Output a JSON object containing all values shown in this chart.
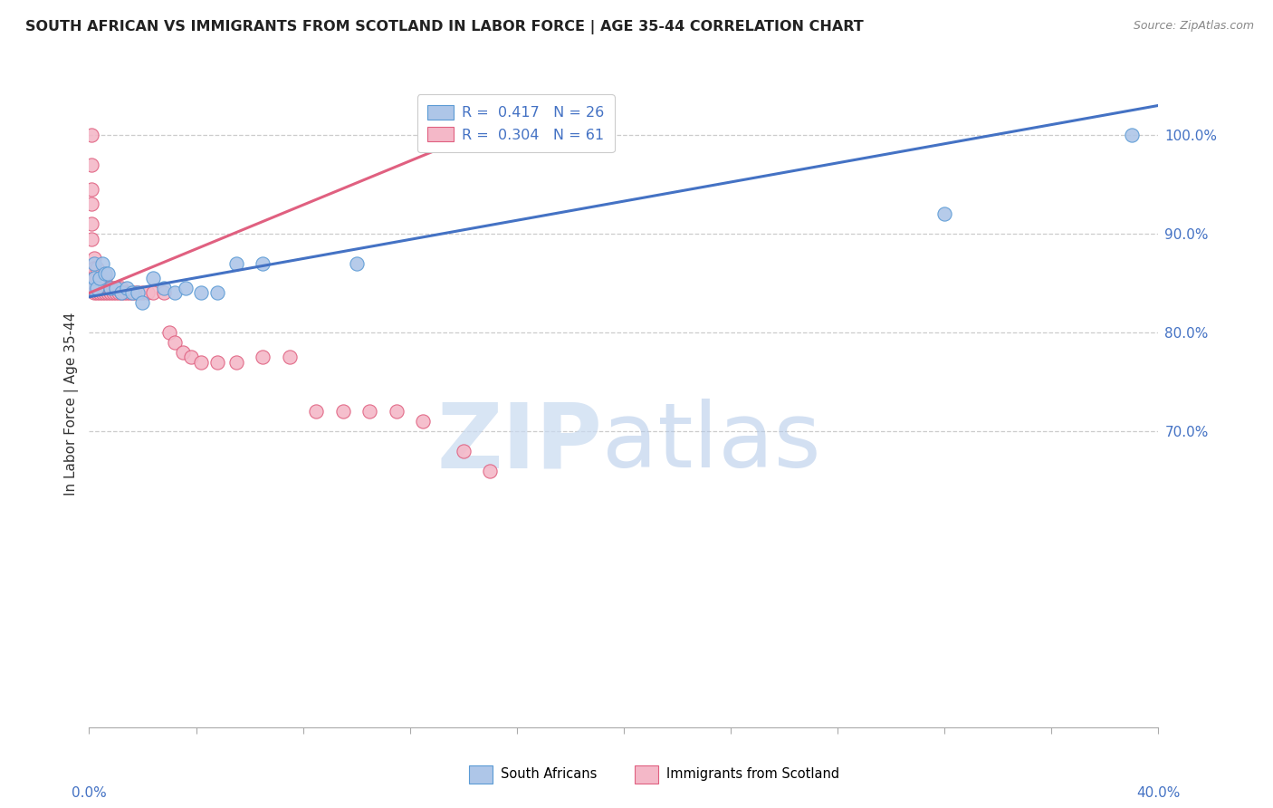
{
  "title": "SOUTH AFRICAN VS IMMIGRANTS FROM SCOTLAND IN LABOR FORCE | AGE 35-44 CORRELATION CHART",
  "source": "Source: ZipAtlas.com",
  "ylabel": "In Labor Force | Age 35-44",
  "watermark_zip": "ZIP",
  "watermark_atlas": "atlas",
  "legend_blue_text": "R =  0.417   N = 26",
  "legend_pink_text": "R =  0.304   N = 61",
  "blue_fill": "#aec6e8",
  "blue_edge": "#5b9bd5",
  "pink_fill": "#f4b8c8",
  "pink_edge": "#e06080",
  "blue_line": "#4472c4",
  "pink_line": "#e06080",
  "blue_scatter_x": [
    0.001,
    0.002,
    0.002,
    0.003,
    0.004,
    0.005,
    0.006,
    0.007,
    0.008,
    0.01,
    0.012,
    0.014,
    0.016,
    0.018,
    0.02,
    0.024,
    0.028,
    0.032,
    0.036,
    0.042,
    0.048,
    0.055,
    0.065,
    0.1,
    0.32,
    0.39
  ],
  "blue_scatter_y": [
    0.845,
    0.855,
    0.87,
    0.845,
    0.855,
    0.87,
    0.86,
    0.86,
    0.845,
    0.845,
    0.84,
    0.845,
    0.84,
    0.84,
    0.83,
    0.855,
    0.845,
    0.84,
    0.845,
    0.84,
    0.84,
    0.87,
    0.87,
    0.87,
    0.92,
    1.0
  ],
  "pink_scatter_x": [
    0.001,
    0.001,
    0.001,
    0.001,
    0.001,
    0.001,
    0.002,
    0.002,
    0.002,
    0.002,
    0.002,
    0.003,
    0.003,
    0.003,
    0.003,
    0.004,
    0.004,
    0.004,
    0.005,
    0.005,
    0.005,
    0.006,
    0.006,
    0.006,
    0.007,
    0.007,
    0.008,
    0.008,
    0.009,
    0.009,
    0.01,
    0.01,
    0.011,
    0.012,
    0.012,
    0.013,
    0.014,
    0.015,
    0.016,
    0.017,
    0.018,
    0.02,
    0.022,
    0.024,
    0.028,
    0.03,
    0.032,
    0.035,
    0.038,
    0.042,
    0.048,
    0.055,
    0.065,
    0.075,
    0.085,
    0.095,
    0.105,
    0.115,
    0.125,
    0.14,
    0.15
  ],
  "pink_scatter_y": [
    1.0,
    0.97,
    0.945,
    0.93,
    0.91,
    0.895,
    0.875,
    0.865,
    0.855,
    0.845,
    0.84,
    0.84,
    0.845,
    0.855,
    0.865,
    0.84,
    0.845,
    0.855,
    0.84,
    0.845,
    0.855,
    0.84,
    0.845,
    0.855,
    0.84,
    0.845,
    0.84,
    0.845,
    0.84,
    0.845,
    0.84,
    0.845,
    0.84,
    0.84,
    0.845,
    0.84,
    0.84,
    0.84,
    0.84,
    0.84,
    0.84,
    0.84,
    0.84,
    0.84,
    0.84,
    0.8,
    0.79,
    0.78,
    0.775,
    0.77,
    0.77,
    0.77,
    0.775,
    0.775,
    0.72,
    0.72,
    0.72,
    0.72,
    0.71,
    0.68,
    0.66
  ],
  "xmin": 0.0,
  "xmax": 0.4,
  "ymin": 0.4,
  "ymax": 1.055,
  "blue_trend_x": [
    0.0,
    0.4
  ],
  "blue_trend_y": [
    0.836,
    1.03
  ],
  "pink_trend_x": [
    0.0,
    0.148
  ],
  "pink_trend_y": [
    0.84,
    1.005
  ],
  "gridline_y": [
    0.7,
    0.8,
    0.9,
    1.0
  ],
  "right_ytick_labels": [
    "100.0%",
    "90.0%",
    "80.0%",
    "70.0%"
  ],
  "right_ytick_vals": [
    1.0,
    0.9,
    0.8,
    0.7
  ],
  "xtick_labels_show": [
    "0.0%",
    "40.0%"
  ],
  "xtick_vals_show": [
    0.0,
    0.4
  ]
}
